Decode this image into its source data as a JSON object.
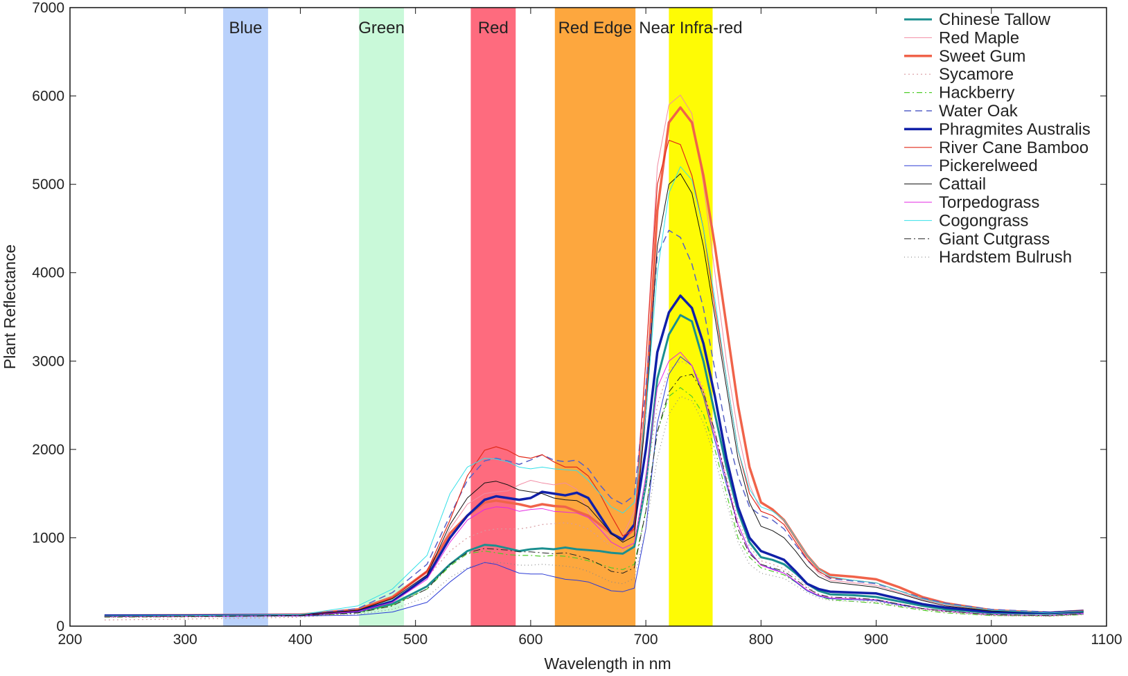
{
  "chart_data": {
    "type": "line",
    "title": "",
    "xlabel": "Wavelength in nm",
    "ylabel": "Plant Reflectance",
    "xlim": [
      200,
      1100
    ],
    "ylim": [
      0,
      7000
    ],
    "xticks": [
      200,
      300,
      400,
      500,
      600,
      700,
      800,
      900,
      1000,
      1100
    ],
    "yticks": [
      0,
      1000,
      2000,
      3000,
      4000,
      5000,
      6000,
      7000
    ],
    "grid": false,
    "legend_position": "top-right",
    "bands": [
      {
        "name": "Blue",
        "from": 333,
        "to": 372,
        "color": "#b9d1fb"
      },
      {
        "name": "Green",
        "from": 451,
        "to": 490,
        "color": "#c9f9d9"
      },
      {
        "name": "Red",
        "from": 548,
        "to": 587,
        "color": "#fe6b7e"
      },
      {
        "name": "Red Edge",
        "from": 621,
        "to": 691,
        "color": "#fda73e"
      },
      {
        "name": "Near Infra-red",
        "from": 720,
        "to": 758,
        "color": "#fefb05"
      }
    ],
    "x": [
      230,
      300,
      400,
      450,
      480,
      510,
      530,
      545,
      560,
      570,
      580,
      590,
      600,
      610,
      620,
      630,
      640,
      650,
      660,
      670,
      680,
      690,
      700,
      710,
      720,
      730,
      740,
      750,
      760,
      770,
      780,
      790,
      800,
      810,
      820,
      830,
      840,
      850,
      860,
      880,
      900,
      920,
      940,
      960,
      1000,
      1050,
      1080
    ],
    "series": [
      {
        "name": "Chinese Tallow",
        "color": "#1b8f8f",
        "width": 3,
        "dash": "",
        "values": [
          115,
          118,
          125,
          165,
          250,
          450,
          700,
          850,
          920,
          910,
          880,
          850,
          870,
          880,
          870,
          890,
          870,
          860,
          850,
          830,
          820,
          900,
          1600,
          2800,
          3300,
          3520,
          3450,
          3000,
          2400,
          1800,
          1300,
          950,
          780,
          750,
          700,
          600,
          480,
          400,
          360,
          350,
          330,
          280,
          230,
          190,
          150,
          140,
          160
        ]
      },
      {
        "name": "Red Maple",
        "color": "#f28ba3",
        "width": 1,
        "dash": "",
        "values": [
          110,
          115,
          125,
          180,
          320,
          600,
          1100,
          1380,
          1500,
          1520,
          1530,
          1600,
          1650,
          1620,
          1600,
          1620,
          1550,
          1300,
          1100,
          1000,
          1020,
          1300,
          3000,
          5200,
          5900,
          6010,
          5800,
          5000,
          4000,
          3000,
          2200,
          1600,
          1300,
          1250,
          1150,
          950,
          750,
          600,
          520,
          490,
          460,
          380,
          300,
          240,
          180,
          150,
          170
        ]
      },
      {
        "name": "Sweet Gum",
        "color": "#f0634a",
        "width": 3.5,
        "dash": "",
        "values": [
          120,
          122,
          130,
          190,
          330,
          620,
          1050,
          1250,
          1400,
          1420,
          1400,
          1380,
          1350,
          1380,
          1360,
          1350,
          1300,
          1250,
          1150,
          1050,
          980,
          1100,
          2500,
          4700,
          5700,
          5870,
          5700,
          5100,
          4300,
          3400,
          2500,
          1800,
          1400,
          1320,
          1200,
          1000,
          800,
          650,
          580,
          560,
          530,
          440,
          330,
          260,
          180,
          150,
          175
        ]
      },
      {
        "name": "Sycamore",
        "color": "#d89aa0",
        "width": 1.2,
        "dash": "2,4",
        "values": [
          70,
          80,
          100,
          150,
          280,
          550,
          850,
          1000,
          1080,
          1100,
          1100,
          1100,
          1120,
          1150,
          1160,
          1170,
          1150,
          1100,
          1000,
          900,
          850,
          950,
          1600,
          2500,
          2900,
          3000,
          2950,
          2700,
          2200,
          1700,
          1200,
          900,
          740,
          700,
          650,
          560,
          450,
          360,
          320,
          300,
          280,
          230,
          190,
          160,
          120,
          110,
          130
        ]
      },
      {
        "name": "Hackberry",
        "color": "#4fcc28",
        "width": 1.2,
        "dash": "8,4,2,4",
        "values": [
          100,
          105,
          115,
          150,
          240,
          420,
          680,
          820,
          850,
          830,
          810,
          800,
          800,
          790,
          800,
          790,
          770,
          740,
          700,
          660,
          640,
          700,
          1300,
          2200,
          2600,
          2700,
          2600,
          2400,
          2000,
          1500,
          1000,
          780,
          660,
          620,
          580,
          500,
          400,
          340,
          300,
          280,
          260,
          220,
          180,
          150,
          120,
          115,
          130
        ]
      },
      {
        "name": "Water Oak",
        "color": "#5560c8",
        "width": 1.5,
        "dash": "10,6",
        "values": [
          110,
          115,
          125,
          200,
          380,
          700,
          1250,
          1650,
          1870,
          1900,
          1870,
          1830,
          1880,
          1940,
          1880,
          1860,
          1880,
          1780,
          1600,
          1450,
          1380,
          1480,
          2700,
          4200,
          4480,
          4400,
          4100,
          3600,
          2900,
          2200,
          1700,
          1350,
          1250,
          1200,
          1100,
          920,
          750,
          620,
          540,
          510,
          480,
          400,
          320,
          260,
          190,
          160,
          180
        ]
      },
      {
        "name": "Phragmites Australis",
        "color": "#1120a8",
        "width": 3.5,
        "dash": "",
        "values": [
          120,
          120,
          125,
          170,
          280,
          560,
          1000,
          1250,
          1430,
          1470,
          1450,
          1430,
          1450,
          1520,
          1500,
          1480,
          1510,
          1450,
          1250,
          1050,
          980,
          1150,
          2000,
          3100,
          3550,
          3740,
          3600,
          3200,
          2600,
          1900,
          1350,
          1000,
          850,
          800,
          750,
          620,
          480,
          420,
          390,
          380,
          370,
          310,
          250,
          210,
          160,
          150,
          170
        ]
      },
      {
        "name": "River Cane Bamboo",
        "color": "#e12a1a",
        "width": 1.2,
        "dash": "",
        "values": [
          115,
          118,
          125,
          180,
          320,
          620,
          1200,
          1700,
          1990,
          2030,
          1990,
          1920,
          1900,
          1940,
          1860,
          1800,
          1800,
          1700,
          1500,
          1250,
          1020,
          1100,
          3000,
          5000,
          5500,
          5450,
          5100,
          4500,
          3600,
          2800,
          2000,
          1500,
          1300,
          1250,
          1150,
          950,
          760,
          620,
          550,
          520,
          490,
          400,
          310,
          250,
          180,
          150,
          175
        ]
      },
      {
        "name": "Pickerelweed",
        "color": "#2b3bd6",
        "width": 1,
        "dash": "",
        "values": [
          110,
          110,
          115,
          125,
          160,
          270,
          500,
          650,
          720,
          700,
          650,
          600,
          590,
          590,
          560,
          530,
          520,
          500,
          450,
          400,
          390,
          430,
          1100,
          2300,
          2850,
          3050,
          2950,
          2600,
          2100,
          1600,
          1150,
          850,
          690,
          650,
          600,
          500,
          400,
          340,
          310,
          300,
          290,
          240,
          200,
          170,
          130,
          120,
          140
        ]
      },
      {
        "name": "Cattail",
        "color": "#111111",
        "width": 1,
        "dash": "",
        "values": [
          110,
          115,
          125,
          180,
          310,
          580,
          1150,
          1450,
          1620,
          1640,
          1600,
          1540,
          1520,
          1500,
          1450,
          1430,
          1420,
          1350,
          1200,
          1050,
          950,
          1020,
          2400,
          4300,
          5000,
          5120,
          4900,
          4300,
          3500,
          2700,
          1900,
          1400,
          1130,
          1080,
          1000,
          850,
          680,
          560,
          500,
          470,
          440,
          370,
          290,
          230,
          170,
          150,
          165
        ]
      },
      {
        "name": "Torpedograss",
        "color": "#e326e3",
        "width": 1,
        "dash": "",
        "values": [
          105,
          110,
          118,
          165,
          270,
          530,
          950,
          1200,
          1320,
          1350,
          1340,
          1300,
          1320,
          1330,
          1300,
          1290,
          1280,
          1230,
          1100,
          950,
          880,
          940,
          1700,
          2700,
          3000,
          3100,
          2950,
          2650,
          2150,
          1650,
          1150,
          840,
          690,
          640,
          600,
          510,
          410,
          350,
          320,
          310,
          300,
          250,
          200,
          170,
          130,
          120,
          145
        ]
      },
      {
        "name": "Cogongrass",
        "color": "#33e0e8",
        "width": 1,
        "dash": "",
        "values": [
          115,
          120,
          130,
          230,
          420,
          800,
          1500,
          1800,
          1900,
          1890,
          1860,
          1800,
          1780,
          1800,
          1780,
          1770,
          1760,
          1650,
          1500,
          1350,
          1280,
          1400,
          2400,
          4000,
          4900,
          5200,
          5050,
          4500,
          3700,
          2800,
          2000,
          1550,
          1350,
          1300,
          1200,
          1000,
          800,
          650,
          560,
          520,
          490,
          400,
          310,
          250,
          180,
          150,
          170
        ]
      },
      {
        "name": "Giant Cutgrass",
        "color": "#222222",
        "width": 1,
        "dash": "10,4,2,4",
        "values": [
          110,
          112,
          120,
          150,
          230,
          420,
          700,
          830,
          880,
          870,
          860,
          840,
          840,
          830,
          820,
          830,
          800,
          760,
          700,
          620,
          600,
          660,
          1300,
          2200,
          2650,
          2820,
          2850,
          2650,
          2200,
          1650,
          1100,
          820,
          700,
          660,
          620,
          530,
          430,
          360,
          330,
          320,
          300,
          250,
          200,
          170,
          130,
          120,
          140
        ]
      },
      {
        "name": "Hardstem Bulrush",
        "color": "#888888",
        "width": 1.2,
        "dash": "1,4",
        "values": [
          100,
          102,
          110,
          135,
          190,
          330,
          550,
          660,
          720,
          720,
          710,
          690,
          690,
          700,
          690,
          680,
          660,
          620,
          560,
          500,
          480,
          540,
          1100,
          1900,
          2400,
          2600,
          2550,
          2300,
          1900,
          1400,
          950,
          700,
          600,
          570,
          540,
          460,
          380,
          320,
          290,
          280,
          270,
          230,
          190,
          160,
          120,
          115,
          130
        ]
      }
    ]
  }
}
